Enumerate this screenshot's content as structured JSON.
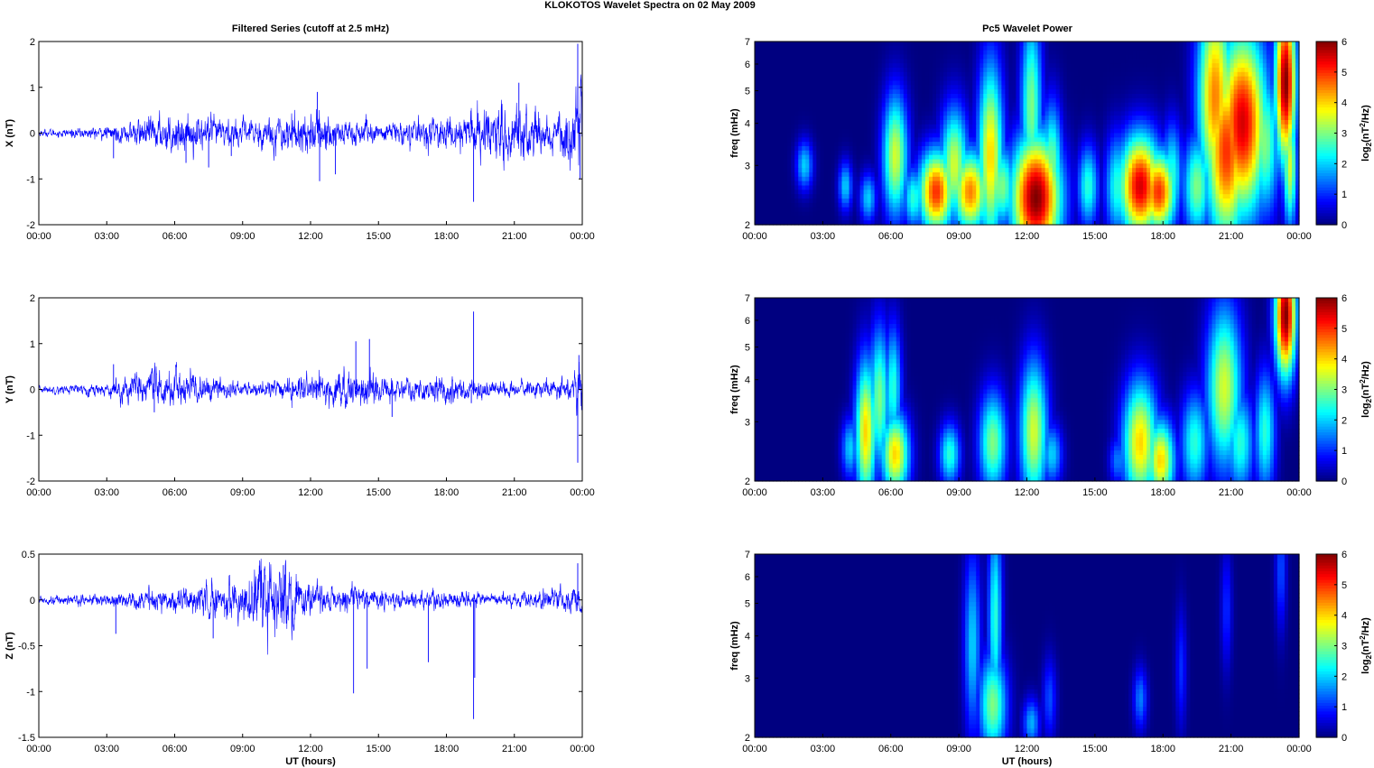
{
  "figure": {
    "suptitle": "KLOKOTOS Wavelet Spectra on 02 May        2009",
    "left_title": "Filtered Series (cutoff at 2.5 mHz)",
    "right_title": "Pc5 Wavelet Power",
    "time_ticks": [
      "00:00",
      "03:00",
      "06:00",
      "09:00",
      "12:00",
      "15:00",
      "18:00",
      "21:00",
      "00:00"
    ],
    "xlabel": "UT (hours)",
    "freq_ylabel": "freq (mHz)",
    "freq_ticks": [
      "2",
      "3",
      "4",
      "5",
      "6",
      "7"
    ],
    "colorbar_ticks": [
      "0",
      "1",
      "2",
      "3",
      "4",
      "5",
      "6"
    ],
    "colorbar_label_main": "log",
    "colorbar_label_sub": "2",
    "colorbar_label_paren": "(nT",
    "colorbar_label_sup": "2",
    "colorbar_label_tail": "/Hz)"
  },
  "chart_data": [
    {
      "type": "line",
      "component": "X",
      "ylabel": "X (nT)",
      "ylim": [
        -2,
        2
      ],
      "yticks": [
        "2",
        "1",
        "0",
        "-1",
        "-2"
      ],
      "xlim_hours": [
        0,
        24
      ],
      "color": "#0000ff",
      "envelope": [
        [
          0,
          0.05
        ],
        [
          3,
          0.1
        ],
        [
          5,
          0.25
        ],
        [
          6,
          0.3
        ],
        [
          9,
          0.2
        ],
        [
          12,
          0.35
        ],
        [
          15,
          0.15
        ],
        [
          18,
          0.25
        ],
        [
          20,
          0.4
        ],
        [
          21,
          0.5
        ],
        [
          23,
          0.3
        ],
        [
          24,
          0.8
        ]
      ],
      "spikes": [
        [
          3.3,
          -0.55
        ],
        [
          6.5,
          -0.65
        ],
        [
          7.5,
          -0.75
        ],
        [
          8.5,
          -0.5
        ],
        [
          12.3,
          0.9
        ],
        [
          12.4,
          -1.05
        ],
        [
          13.1,
          -0.9
        ],
        [
          19.2,
          -1.5
        ],
        [
          21.2,
          1.1
        ],
        [
          23.8,
          1.95
        ],
        [
          23.9,
          -1.0
        ]
      ]
    },
    {
      "type": "line",
      "component": "Y",
      "ylabel": "Y (nT)",
      "ylim": [
        -2,
        2
      ],
      "yticks": [
        "2",
        "1",
        "0",
        "-1",
        "-2"
      ],
      "xlim_hours": [
        0,
        24
      ],
      "color": "#0000ff",
      "envelope": [
        [
          0,
          0.05
        ],
        [
          3,
          0.1
        ],
        [
          4.5,
          0.3
        ],
        [
          6,
          0.3
        ],
        [
          9,
          0.1
        ],
        [
          12,
          0.2
        ],
        [
          14,
          0.3
        ],
        [
          16,
          0.15
        ],
        [
          18,
          0.2
        ],
        [
          21,
          0.12
        ],
        [
          23.5,
          0.15
        ],
        [
          24,
          0.7
        ]
      ],
      "spikes": [
        [
          3.3,
          0.55
        ],
        [
          5.1,
          -0.5
        ],
        [
          14.0,
          1.05
        ],
        [
          14.6,
          1.1
        ],
        [
          15.6,
          -0.6
        ],
        [
          19.2,
          1.7
        ],
        [
          19.1,
          -0.3
        ],
        [
          23.8,
          -1.6
        ],
        [
          23.85,
          0.75
        ]
      ]
    },
    {
      "type": "line",
      "component": "Z",
      "ylabel": "Z (nT)",
      "ylim": [
        -1.5,
        0.5
      ],
      "yticks": [
        "0.5",
        "0",
        "-0.5",
        "-1",
        "-1.5"
      ],
      "xlim_hours": [
        0,
        24
      ],
      "color": "#0000ff",
      "envelope": [
        [
          0,
          0.03
        ],
        [
          3,
          0.05
        ],
        [
          6,
          0.1
        ],
        [
          9,
          0.15
        ],
        [
          10,
          0.3
        ],
        [
          11,
          0.3
        ],
        [
          12,
          0.12
        ],
        [
          15,
          0.07
        ],
        [
          18,
          0.07
        ],
        [
          21,
          0.05
        ],
        [
          24,
          0.12
        ]
      ],
      "spikes": [
        [
          3.4,
          -0.37
        ],
        [
          7.7,
          -0.42
        ],
        [
          10.8,
          0.38
        ],
        [
          13.9,
          -1.02
        ],
        [
          14.5,
          -0.75
        ],
        [
          17.2,
          -0.68
        ],
        [
          19.2,
          -1.3
        ],
        [
          19.25,
          -0.85
        ],
        [
          23.8,
          0.4
        ]
      ]
    },
    {
      "type": "heatmap",
      "component": "X",
      "colormap": "jet",
      "ylabel": "freq (mHz)",
      "ylim": [
        2,
        7
      ],
      "yscale": "log",
      "xlim_hours": [
        0,
        24
      ],
      "clim": [
        0,
        6
      ],
      "blobs": [
        [
          2.2,
          3.0,
          0.12,
          0.12,
          2.0
        ],
        [
          4.0,
          2.6,
          0.1,
          0.12,
          2.0
        ],
        [
          5.0,
          2.4,
          0.12,
          0.12,
          2.0
        ],
        [
          6.2,
          3.2,
          0.18,
          0.3,
          3.5
        ],
        [
          7.0,
          2.4,
          0.15,
          0.15,
          2.5
        ],
        [
          8.0,
          2.5,
          0.25,
          0.2,
          5.0
        ],
        [
          8.8,
          3.0,
          0.2,
          0.28,
          3.5
        ],
        [
          9.5,
          2.5,
          0.25,
          0.2,
          4.5
        ],
        [
          10.4,
          3.2,
          0.18,
          0.45,
          4.0
        ],
        [
          10.9,
          2.6,
          0.2,
          0.2,
          3.0
        ],
        [
          12.4,
          2.4,
          0.35,
          0.3,
          6.0
        ],
        [
          12.2,
          4.5,
          0.15,
          0.45,
          3.0
        ],
        [
          13.1,
          3.0,
          0.15,
          0.3,
          3.0
        ],
        [
          14.7,
          2.6,
          0.15,
          0.2,
          2.5
        ],
        [
          16.0,
          2.6,
          0.18,
          0.25,
          2.5
        ],
        [
          17.0,
          2.6,
          0.3,
          0.25,
          5.5
        ],
        [
          17.8,
          2.5,
          0.25,
          0.2,
          5.0
        ],
        [
          18.4,
          2.8,
          0.15,
          0.25,
          2.5
        ],
        [
          19.5,
          2.6,
          0.2,
          0.25,
          3.0
        ],
        [
          20.3,
          4.8,
          0.25,
          0.5,
          4.5
        ],
        [
          20.8,
          3.3,
          0.3,
          0.45,
          5.0
        ],
        [
          21.5,
          4.0,
          0.35,
          0.45,
          5.5
        ],
        [
          22.5,
          3.5,
          0.2,
          0.35,
          3.0
        ],
        [
          23.4,
          5.3,
          0.15,
          0.4,
          6.0
        ],
        [
          23.6,
          3.0,
          0.1,
          0.3,
          3.5
        ]
      ]
    },
    {
      "type": "heatmap",
      "component": "Y",
      "colormap": "jet",
      "ylabel": "freq (mHz)",
      "ylim": [
        2,
        7
      ],
      "yscale": "log",
      "xlim_hours": [
        0,
        24
      ],
      "clim": [
        0,
        6
      ],
      "blobs": [
        [
          4.2,
          2.5,
          0.12,
          0.15,
          2.0
        ],
        [
          4.9,
          2.8,
          0.15,
          0.35,
          4.0
        ],
        [
          5.5,
          3.5,
          0.15,
          0.35,
          3.0
        ],
        [
          6.2,
          2.4,
          0.2,
          0.2,
          4.0
        ],
        [
          6.1,
          3.8,
          0.12,
          0.3,
          2.5
        ],
        [
          8.6,
          2.4,
          0.15,
          0.15,
          2.5
        ],
        [
          10.5,
          2.6,
          0.2,
          0.25,
          3.0
        ],
        [
          12.3,
          2.8,
          0.2,
          0.35,
          3.5
        ],
        [
          13.1,
          2.4,
          0.15,
          0.15,
          2.0
        ],
        [
          16.0,
          2.3,
          0.12,
          0.12,
          1.5
        ],
        [
          17.0,
          2.6,
          0.25,
          0.3,
          4.0
        ],
        [
          17.9,
          2.3,
          0.2,
          0.2,
          4.0
        ],
        [
          19.4,
          2.6,
          0.2,
          0.25,
          2.5
        ],
        [
          20.7,
          3.8,
          0.25,
          0.4,
          3.5
        ],
        [
          21.4,
          2.6,
          0.2,
          0.25,
          2.5
        ],
        [
          22.5,
          2.8,
          0.15,
          0.3,
          2.5
        ],
        [
          23.4,
          6.2,
          0.15,
          0.3,
          6.0
        ]
      ]
    },
    {
      "type": "heatmap",
      "component": "Z",
      "colormap": "jet",
      "ylabel": "freq (mHz)",
      "ylim": [
        2,
        7
      ],
      "yscale": "log",
      "xlim_hours": [
        0,
        24
      ],
      "clim": [
        0,
        6
      ],
      "blobs": [
        [
          9.6,
          3.8,
          0.12,
          0.45,
          2.0
        ],
        [
          10.5,
          2.5,
          0.2,
          0.25,
          3.0
        ],
        [
          10.6,
          4.5,
          0.1,
          0.5,
          2.5
        ],
        [
          12.2,
          2.2,
          0.12,
          0.12,
          1.8
        ],
        [
          13.0,
          2.6,
          0.1,
          0.2,
          1.2
        ],
        [
          17.0,
          2.6,
          0.1,
          0.15,
          1.5
        ],
        [
          18.8,
          3.2,
          0.08,
          0.3,
          1.0
        ],
        [
          20.8,
          4.8,
          0.08,
          0.3,
          1.0
        ],
        [
          23.2,
          6.3,
          0.08,
          0.3,
          1.2
        ]
      ]
    }
  ]
}
